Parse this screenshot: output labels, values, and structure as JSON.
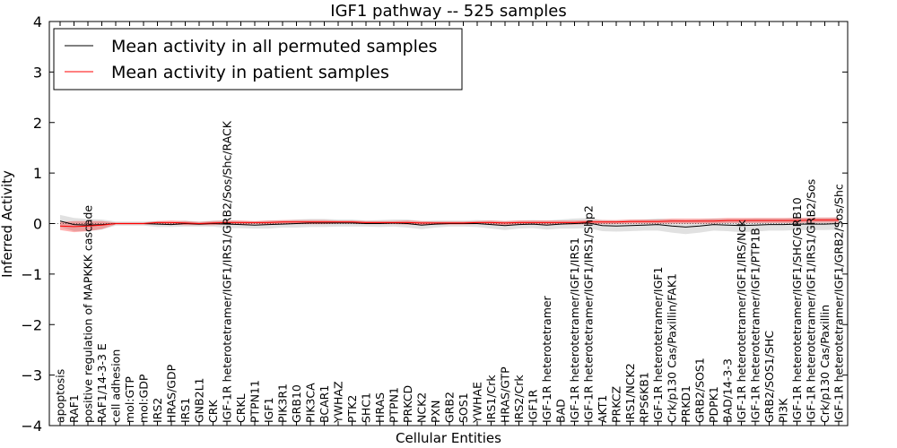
{
  "chart_data": {
    "type": "line",
    "title": "IGF1 pathway -- 525 samples",
    "xlabel": "Cellular Entities",
    "ylabel": "Inferred Activity",
    "ylim": [
      -4,
      4
    ],
    "yticks": [
      -4,
      -3,
      -2,
      -1,
      0,
      1,
      2,
      3,
      4
    ],
    "ytick_labels": [
      "−4",
      "−3",
      "−2",
      "−1",
      "0",
      "1",
      "2",
      "3",
      "4"
    ],
    "grid": false,
    "legend_position": "top-left",
    "categories": [
      "apoptosis",
      "RAF1",
      "positive regulation of MAPKKK cascade",
      "RAF1/14-3-3 E",
      "cell adhesion",
      "mol:GTP",
      "mol:GDP",
      "IRS2",
      "HRAS/GDP",
      "IRS1",
      "GNB2L1",
      "CRK",
      "IGF-1R heterotetramer/IGF1/IRS1/GRB2/Sos/Shc/RACK",
      "CRKL",
      "PTPN11",
      "IGF1",
      "PIK3R1",
      "GRB10",
      "PIK3CA",
      "BCAR1",
      "YWHAZ",
      "PTK2",
      "SHC1",
      "HRAS",
      "PTPN1",
      "PRKCD",
      "NCK2",
      "PXN",
      "GRB2",
      "SOS1",
      "YWHAE",
      "IRS1/Crk",
      "HRAS/GTP",
      "IRS2/Crk",
      "IGF1R",
      "IGF-1R heterotetramer",
      "BAD",
      "IGF-1R heterotetramer/IGF1/IRS1",
      "IGF-1R heterotetramer/IGF1/IRS1/Shp2",
      "AKT1",
      "PRKCZ",
      "IRS1/NCK2",
      "RPS6KB1",
      "IGF-1R heterotetramer/IGF1",
      "Crk/p130 Cas/Paxillin/FAK1",
      "PRKD1",
      "GRB2/SOS1",
      "PDPK1",
      "BAD/14-3-3",
      "IGF-1R heterotetramer/IGF1/IRS/Nck",
      "IGF-1R heterotetramer/IGF1/PTP1B",
      "GRB2/SOS1/SHC",
      "PI3K",
      "IGF-1R heterotetramer/IGF1/SHC/GRB10",
      "IGF-1R heterotetramer/IGF1/IRS1/GRB2/Sos",
      "Crk/p130 Cas/Paxillin",
      "IGF-1R heterotetramer/IGF1/GRB2/Sos/Shc"
    ],
    "series": [
      {
        "name": "Mean activity in all permuted samples",
        "color": "#000000",
        "values": [
          0.05,
          -0.02,
          -0.03,
          -0.02,
          0.0,
          0.0,
          0.0,
          -0.01,
          -0.02,
          0.0,
          -0.01,
          0.0,
          -0.01,
          -0.02,
          -0.03,
          -0.02,
          -0.01,
          0.0,
          0.01,
          0.01,
          0.01,
          0.01,
          0.0,
          0.0,
          0.01,
          0.0,
          -0.03,
          -0.01,
          0.0,
          0.0,
          0.0,
          -0.02,
          -0.04,
          -0.02,
          -0.01,
          -0.03,
          -0.01,
          0.0,
          0.01,
          -0.04,
          -0.05,
          -0.04,
          -0.03,
          -0.02,
          -0.05,
          -0.07,
          -0.05,
          -0.02,
          -0.03,
          -0.04,
          -0.03,
          -0.02,
          -0.02,
          -0.01,
          -0.01,
          -0.01,
          0.0
        ],
        "band": [
          0.12,
          0.13,
          0.12,
          0.1,
          0.04,
          0.04,
          0.04,
          0.06,
          0.05,
          0.06,
          0.05,
          0.06,
          0.08,
          0.07,
          0.07,
          0.08,
          0.07,
          0.08,
          0.08,
          0.08,
          0.07,
          0.07,
          0.06,
          0.07,
          0.07,
          0.08,
          0.08,
          0.07,
          0.06,
          0.06,
          0.07,
          0.08,
          0.09,
          0.08,
          0.08,
          0.09,
          0.09,
          0.1,
          0.1,
          0.11,
          0.11,
          0.11,
          0.11,
          0.12,
          0.13,
          0.14,
          0.13,
          0.12,
          0.12,
          0.13,
          0.13,
          0.12,
          0.12,
          0.12,
          0.12,
          0.12,
          0.12
        ]
      },
      {
        "name": "Mean activity in patient samples",
        "color": "#ff0000",
        "values": [
          -0.05,
          -0.06,
          -0.05,
          -0.03,
          0.0,
          0.0,
          0.0,
          0.02,
          0.02,
          0.01,
          0.0,
          0.01,
          0.02,
          0.02,
          0.02,
          0.02,
          0.03,
          0.03,
          0.03,
          0.03,
          0.03,
          0.03,
          0.02,
          0.02,
          0.02,
          0.02,
          0.01,
          0.01,
          0.01,
          0.01,
          0.02,
          0.02,
          0.01,
          0.02,
          0.02,
          0.02,
          0.02,
          0.02,
          0.03,
          0.03,
          0.03,
          0.04,
          0.04,
          0.04,
          0.05,
          0.05,
          0.05,
          0.05,
          0.06,
          0.06,
          0.06,
          0.06,
          0.06,
          0.06,
          0.07,
          0.07,
          0.07
        ],
        "band": [
          0.08,
          0.11,
          0.1,
          0.08,
          0.02,
          0.02,
          0.02,
          0.03,
          0.04,
          0.04,
          0.03,
          0.04,
          0.04,
          0.04,
          0.03,
          0.04,
          0.04,
          0.04,
          0.04,
          0.04,
          0.03,
          0.03,
          0.03,
          0.03,
          0.03,
          0.04,
          0.04,
          0.03,
          0.03,
          0.03,
          0.03,
          0.04,
          0.04,
          0.04,
          0.04,
          0.04,
          0.04,
          0.04,
          0.04,
          0.04,
          0.04,
          0.04,
          0.04,
          0.04,
          0.05,
          0.05,
          0.05,
          0.05,
          0.05,
          0.05,
          0.05,
          0.05,
          0.05,
          0.05,
          0.05,
          0.05,
          0.05
        ]
      }
    ]
  }
}
